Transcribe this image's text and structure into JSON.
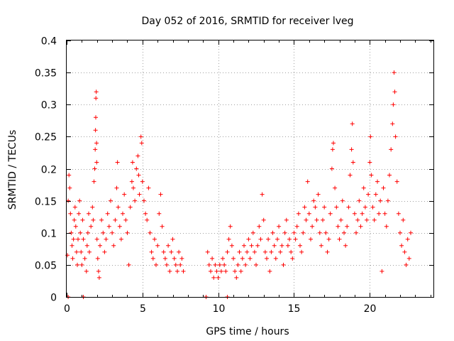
{
  "chart_data": {
    "type": "scatter",
    "title": "Day 052 of 2016, SRMTID for receiver lveg",
    "xlabel": "GPS time / hours",
    "ylabel": "SRMTID / TECUs",
    "xlim": [
      0,
      24.2
    ],
    "ylim": [
      0,
      0.4
    ],
    "xticks": [
      0,
      5,
      10,
      15,
      20
    ],
    "xtick_labels": [
      "0",
      "5",
      "10",
      "15",
      "20"
    ],
    "yticks": [
      0,
      0.05,
      0.1,
      0.15,
      0.2,
      0.25,
      0.3,
      0.35,
      0.4
    ],
    "ytick_labels": [
      "0",
      "0.05",
      "0.1",
      "0.15",
      "0.2",
      "0.25",
      "0.3",
      "0.35",
      "0.4"
    ],
    "grid": true,
    "marker": "+",
    "color": "#ff0000",
    "series": [
      {
        "name": "SRMTID",
        "points": [
          [
            0.05,
            0.065
          ],
          [
            0.1,
            0.15
          ],
          [
            0.15,
            0.19
          ],
          [
            0.2,
            0.17
          ],
          [
            0.25,
            0.13
          ],
          [
            0.3,
            0.1
          ],
          [
            0.35,
            0.08
          ],
          [
            0.4,
            0.06
          ],
          [
            0.45,
            0.09
          ],
          [
            0.5,
            0.12
          ],
          [
            0.55,
            0.14
          ],
          [
            0.6,
            0.11
          ],
          [
            0.65,
            0.07
          ],
          [
            0.7,
            0.05
          ],
          [
            0.75,
            0.09
          ],
          [
            0.8,
            0.13
          ],
          [
            0.85,
            0.15
          ],
          [
            0.9,
            0.1
          ],
          [
            0.95,
            0.07
          ],
          [
            1.0,
            0.05
          ],
          [
            1.05,
            0.12
          ],
          [
            1.1,
            0.09
          ],
          [
            1.2,
            0.06
          ],
          [
            1.3,
            0.04
          ],
          [
            1.35,
            0.08
          ],
          [
            1.4,
            0.1
          ],
          [
            1.45,
            0.13
          ],
          [
            1.5,
            0.07
          ],
          [
            1.6,
            0.11
          ],
          [
            1.7,
            0.14
          ],
          [
            1.75,
            0.12
          ],
          [
            1.8,
            0.18
          ],
          [
            1.85,
            0.2
          ],
          [
            1.88,
            0.23
          ],
          [
            1.9,
            0.26
          ],
          [
            1.92,
            0.28
          ],
          [
            1.93,
            0.31
          ],
          [
            1.95,
            0.32
          ],
          [
            1.97,
            0.24
          ],
          [
            1.98,
            0.21
          ],
          [
            2.0,
            0.09
          ],
          [
            2.05,
            0.06
          ],
          [
            2.1,
            0.04
          ],
          [
            2.15,
            0.03
          ],
          [
            2.2,
            0.08
          ],
          [
            2.3,
            0.12
          ],
          [
            2.4,
            0.1
          ],
          [
            2.5,
            0.07
          ],
          [
            2.6,
            0.09
          ],
          [
            2.7,
            0.13
          ],
          [
            2.8,
            0.11
          ],
          [
            2.9,
            0.15
          ],
          [
            3.0,
            0.1
          ],
          [
            3.1,
            0.08
          ],
          [
            3.2,
            0.12
          ],
          [
            3.3,
            0.17
          ],
          [
            3.35,
            0.21
          ],
          [
            3.4,
            0.14
          ],
          [
            3.5,
            0.11
          ],
          [
            3.6,
            0.09
          ],
          [
            3.7,
            0.13
          ],
          [
            3.8,
            0.16
          ],
          [
            3.9,
            0.12
          ],
          [
            4.0,
            0.1
          ],
          [
            4.1,
            0.05
          ],
          [
            4.2,
            0.14
          ],
          [
            4.3,
            0.18
          ],
          [
            4.35,
            0.21
          ],
          [
            4.4,
            0.17
          ],
          [
            4.5,
            0.15
          ],
          [
            4.6,
            0.2
          ],
          [
            4.7,
            0.22
          ],
          [
            4.75,
            0.19
          ],
          [
            4.8,
            0.16
          ],
          [
            4.9,
            0.25
          ],
          [
            4.95,
            0.24
          ],
          [
            5.0,
            0.18
          ],
          [
            5.1,
            0.15
          ],
          [
            5.2,
            0.13
          ],
          [
            5.3,
            0.12
          ],
          [
            5.4,
            0.17
          ],
          [
            5.5,
            0.1
          ],
          [
            5.6,
            0.07
          ],
          [
            5.7,
            0.06
          ],
          [
            5.8,
            0.09
          ],
          [
            5.9,
            0.05
          ],
          [
            6.0,
            0.08
          ],
          [
            6.1,
            0.13
          ],
          [
            6.2,
            0.16
          ],
          [
            6.3,
            0.11
          ],
          [
            6.4,
            0.07
          ],
          [
            6.5,
            0.06
          ],
          [
            6.6,
            0.05
          ],
          [
            6.7,
            0.08
          ],
          [
            6.8,
            0.04
          ],
          [
            6.9,
            0.07
          ],
          [
            7.0,
            0.09
          ],
          [
            7.1,
            0.06
          ],
          [
            7.2,
            0.05
          ],
          [
            7.3,
            0.04
          ],
          [
            7.4,
            0.07
          ],
          [
            7.5,
            0.05
          ],
          [
            7.6,
            0.06
          ],
          [
            7.7,
            0.04
          ],
          [
            0.1,
            0.0
          ],
          [
            1.1,
            0.0
          ],
          [
            9.2,
            0.0
          ],
          [
            10.6,
            0.0
          ],
          [
            9.3,
            0.07
          ],
          [
            9.4,
            0.05
          ],
          [
            9.5,
            0.04
          ],
          [
            9.6,
            0.06
          ],
          [
            9.7,
            0.03
          ],
          [
            9.8,
            0.05
          ],
          [
            9.9,
            0.04
          ],
          [
            10.0,
            0.03
          ],
          [
            10.1,
            0.05
          ],
          [
            10.2,
            0.04
          ],
          [
            10.3,
            0.06
          ],
          [
            10.4,
            0.05
          ],
          [
            10.5,
            0.04
          ],
          [
            10.6,
            0.07
          ],
          [
            10.7,
            0.09
          ],
          [
            10.8,
            0.11
          ],
          [
            10.9,
            0.08
          ],
          [
            11.0,
            0.06
          ],
          [
            11.1,
            0.04
          ],
          [
            11.2,
            0.03
          ],
          [
            11.3,
            0.05
          ],
          [
            11.4,
            0.07
          ],
          [
            11.5,
            0.04
          ],
          [
            11.6,
            0.06
          ],
          [
            11.7,
            0.08
          ],
          [
            11.8,
            0.05
          ],
          [
            11.9,
            0.07
          ],
          [
            12.0,
            0.09
          ],
          [
            12.1,
            0.06
          ],
          [
            12.2,
            0.08
          ],
          [
            12.3,
            0.1
          ],
          [
            12.4,
            0.07
          ],
          [
            12.5,
            0.05
          ],
          [
            12.6,
            0.08
          ],
          [
            12.7,
            0.11
          ],
          [
            12.8,
            0.09
          ],
          [
            12.9,
            0.16
          ],
          [
            13.0,
            0.12
          ],
          [
            13.1,
            0.07
          ],
          [
            13.2,
            0.06
          ],
          [
            13.3,
            0.09
          ],
          [
            13.4,
            0.04
          ],
          [
            13.5,
            0.07
          ],
          [
            13.6,
            0.1
          ],
          [
            13.7,
            0.08
          ],
          [
            13.8,
            0.06
          ],
          [
            13.9,
            0.09
          ],
          [
            14.0,
            0.11
          ],
          [
            14.1,
            0.07
          ],
          [
            14.2,
            0.08
          ],
          [
            14.3,
            0.05
          ],
          [
            14.4,
            0.1
          ],
          [
            14.5,
            0.12
          ],
          [
            14.6,
            0.08
          ],
          [
            14.7,
            0.09
          ],
          [
            14.8,
            0.07
          ],
          [
            14.9,
            0.06
          ],
          [
            15.0,
            0.1
          ],
          [
            15.1,
            0.09
          ],
          [
            15.2,
            0.11
          ],
          [
            15.3,
            0.13
          ],
          [
            15.4,
            0.08
          ],
          [
            15.5,
            0.07
          ],
          [
            15.6,
            0.1
          ],
          [
            15.7,
            0.14
          ],
          [
            15.8,
            0.12
          ],
          [
            15.9,
            0.18
          ],
          [
            16.0,
            0.13
          ],
          [
            16.1,
            0.09
          ],
          [
            16.2,
            0.11
          ],
          [
            16.3,
            0.15
          ],
          [
            16.4,
            0.14
          ],
          [
            16.5,
            0.12
          ],
          [
            16.6,
            0.16
          ],
          [
            16.7,
            0.1
          ],
          [
            16.8,
            0.08
          ],
          [
            16.9,
            0.12
          ],
          [
            17.0,
            0.14
          ],
          [
            17.1,
            0.1
          ],
          [
            17.2,
            0.07
          ],
          [
            17.3,
            0.09
          ],
          [
            17.4,
            0.13
          ],
          [
            17.5,
            0.2
          ],
          [
            17.55,
            0.23
          ],
          [
            17.6,
            0.24
          ],
          [
            17.7,
            0.17
          ],
          [
            17.8,
            0.14
          ],
          [
            17.9,
            0.11
          ],
          [
            18.0,
            0.09
          ],
          [
            18.1,
            0.12
          ],
          [
            18.2,
            0.15
          ],
          [
            18.3,
            0.1
          ],
          [
            18.4,
            0.08
          ],
          [
            18.5,
            0.11
          ],
          [
            18.6,
            0.14
          ],
          [
            18.7,
            0.19
          ],
          [
            18.8,
            0.23
          ],
          [
            18.85,
            0.27
          ],
          [
            18.9,
            0.21
          ],
          [
            19.0,
            0.13
          ],
          [
            19.1,
            0.1
          ],
          [
            19.2,
            0.12
          ],
          [
            19.3,
            0.15
          ],
          [
            19.4,
            0.11
          ],
          [
            19.5,
            0.13
          ],
          [
            19.6,
            0.17
          ],
          [
            19.7,
            0.14
          ],
          [
            19.8,
            0.12
          ],
          [
            19.9,
            0.16
          ],
          [
            20.0,
            0.21
          ],
          [
            20.05,
            0.25
          ],
          [
            20.1,
            0.19
          ],
          [
            20.2,
            0.14
          ],
          [
            20.3,
            0.12
          ],
          [
            20.4,
            0.16
          ],
          [
            20.5,
            0.18
          ],
          [
            20.6,
            0.13
          ],
          [
            20.7,
            0.15
          ],
          [
            20.8,
            0.04
          ],
          [
            20.9,
            0.17
          ],
          [
            21.0,
            0.13
          ],
          [
            21.1,
            0.11
          ],
          [
            21.2,
            0.15
          ],
          [
            21.3,
            0.19
          ],
          [
            21.4,
            0.23
          ],
          [
            21.5,
            0.27
          ],
          [
            21.55,
            0.3
          ],
          [
            21.6,
            0.35
          ],
          [
            21.65,
            0.32
          ],
          [
            21.7,
            0.25
          ],
          [
            21.8,
            0.18
          ],
          [
            21.9,
            0.13
          ],
          [
            22.0,
            0.1
          ],
          [
            22.1,
            0.08
          ],
          [
            22.2,
            0.12
          ],
          [
            22.3,
            0.07
          ],
          [
            22.4,
            0.05
          ],
          [
            22.5,
            0.09
          ],
          [
            22.6,
            0.06
          ],
          [
            22.7,
            0.1
          ]
        ]
      }
    ]
  }
}
